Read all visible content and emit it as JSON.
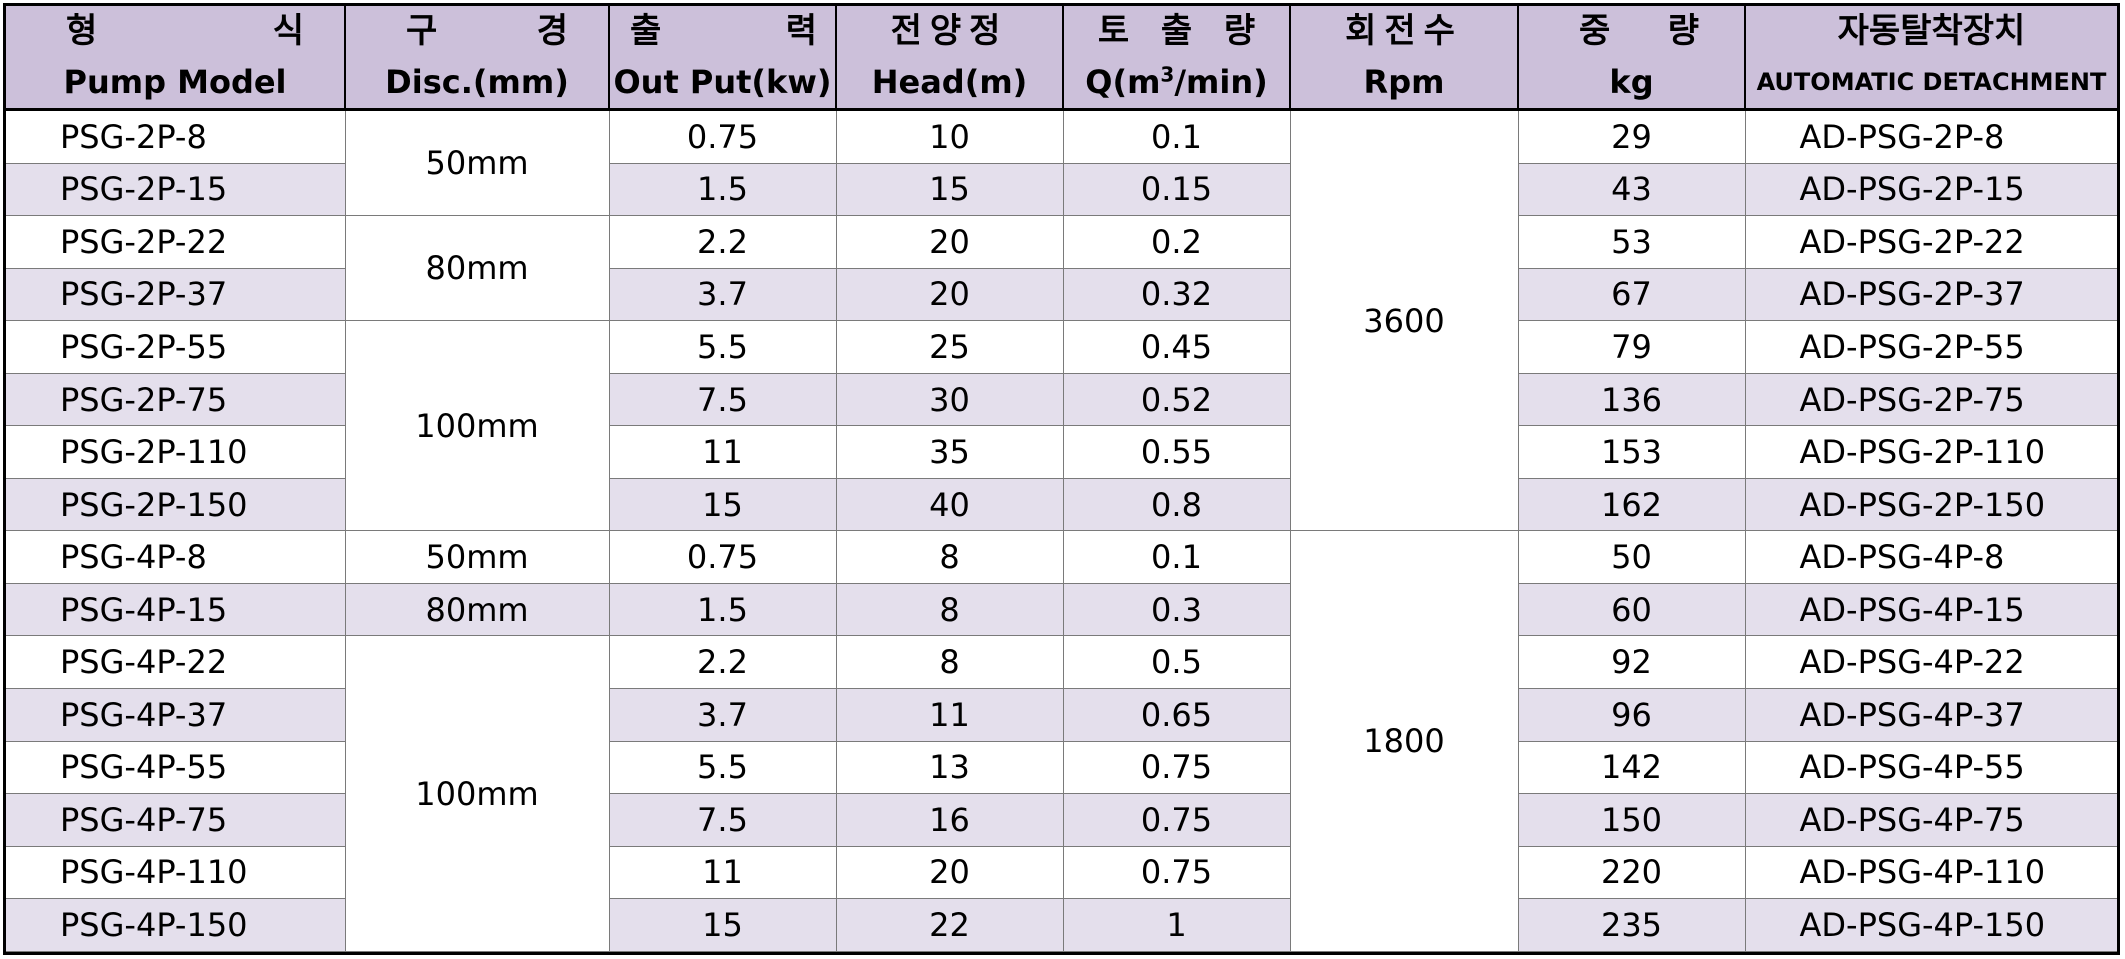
{
  "header": {
    "model_kr": [
      "형",
      "식"
    ],
    "model_en": "Pump Model",
    "disc_kr": [
      "구",
      "경"
    ],
    "disc_en": "Disc.(mm)",
    "output_kr": [
      "출",
      "력"
    ],
    "output_en": "Out Put(kw)",
    "head_kr": "전양정",
    "head_en": "Head(m)",
    "q_kr": [
      "토",
      "출",
      "량"
    ],
    "q_en_pre": "Q(m",
    "q_en_sup": "3",
    "q_en_post": "/min)",
    "rpm_kr": "회전수",
    "rpm_en": "Rpm",
    "weight_kr": [
      "중",
      "량"
    ],
    "weight_en": "kg",
    "auto_kr": "자동탈착장치",
    "auto_en": "AUTOMATIC DETACHMENT"
  },
  "merged": {
    "disc": [
      "50mm",
      "80mm",
      "100mm",
      "50mm",
      "80mm",
      "100mm"
    ],
    "rpm": [
      "3600",
      "1800"
    ]
  },
  "rows": [
    {
      "model": "PSG-2P-8",
      "output": "0.75",
      "head": "10",
      "q": "0.1",
      "weight": "29",
      "detach": "AD-PSG-2P-8"
    },
    {
      "model": "PSG-2P-15",
      "output": "1.5",
      "head": "15",
      "q": "0.15",
      "weight": "43",
      "detach": "AD-PSG-2P-15"
    },
    {
      "model": "PSG-2P-22",
      "output": "2.2",
      "head": "20",
      "q": "0.2",
      "weight": "53",
      "detach": "AD-PSG-2P-22"
    },
    {
      "model": "PSG-2P-37",
      "output": "3.7",
      "head": "20",
      "q": "0.32",
      "weight": "67",
      "detach": "AD-PSG-2P-37"
    },
    {
      "model": "PSG-2P-55",
      "output": "5.5",
      "head": "25",
      "q": "0.45",
      "weight": "79",
      "detach": "AD-PSG-2P-55"
    },
    {
      "model": "PSG-2P-75",
      "output": "7.5",
      "head": "30",
      "q": "0.52",
      "weight": "136",
      "detach": "AD-PSG-2P-75"
    },
    {
      "model": "PSG-2P-110",
      "output": "11",
      "head": "35",
      "q": "0.55",
      "weight": "153",
      "detach": "AD-PSG-2P-110"
    },
    {
      "model": "PSG-2P-150",
      "output": "15",
      "head": "40",
      "q": "0.8",
      "weight": "162",
      "detach": "AD-PSG-2P-150"
    },
    {
      "model": "PSG-4P-8",
      "output": "0.75",
      "head": "8",
      "q": "0.1",
      "weight": "50",
      "detach": "AD-PSG-4P-8"
    },
    {
      "model": "PSG-4P-15",
      "output": "1.5",
      "head": "8",
      "q": "0.3",
      "weight": "60",
      "detach": "AD-PSG-4P-15"
    },
    {
      "model": "PSG-4P-22",
      "output": "2.2",
      "head": "8",
      "q": "0.5",
      "weight": "92",
      "detach": "AD-PSG-4P-22"
    },
    {
      "model": "PSG-4P-37",
      "output": "3.7",
      "head": "11",
      "q": "0.65",
      "weight": "96",
      "detach": "AD-PSG-4P-37"
    },
    {
      "model": "PSG-4P-55",
      "output": "5.5",
      "head": "13",
      "q": "0.75",
      "weight": "142",
      "detach": "AD-PSG-4P-55"
    },
    {
      "model": "PSG-4P-75",
      "output": "7.5",
      "head": "16",
      "q": "0.75",
      "weight": "150",
      "detach": "AD-PSG-4P-75"
    },
    {
      "model": "PSG-4P-110",
      "output": "11",
      "head": "20",
      "q": "0.75",
      "weight": "220",
      "detach": "AD-PSG-4P-110"
    },
    {
      "model": "PSG-4P-150",
      "output": "15",
      "head": "22",
      "q": "1",
      "weight": "235",
      "detach": "AD-PSG-4P-150"
    }
  ],
  "colors": {
    "header_bg": "#ccc0da",
    "alt_row_bg": "#e4dfec",
    "border": "#000000"
  }
}
